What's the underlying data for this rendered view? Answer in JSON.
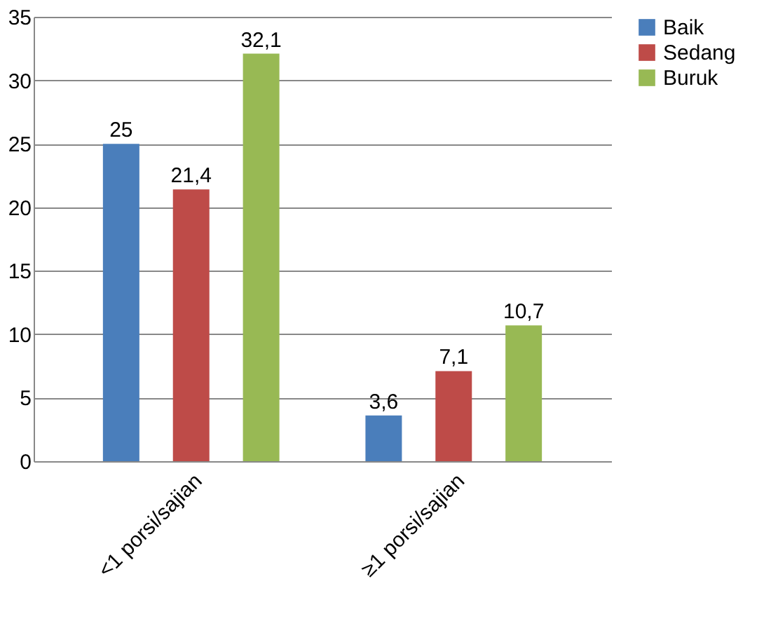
{
  "chart_data": {
    "type": "bar",
    "categories": [
      "<1 porsi/sajian",
      "≥1 porsi/sajian"
    ],
    "series": [
      {
        "name": "Baik",
        "color": "#4a7ebb",
        "values": [
          25,
          3.6
        ],
        "value_labels": [
          "25",
          "3,6"
        ]
      },
      {
        "name": "Sedang",
        "color": "#be4b48",
        "values": [
          21.4,
          7.1
        ],
        "value_labels": [
          "21,4",
          "7,1"
        ]
      },
      {
        "name": "Buruk",
        "color": "#98b954",
        "values": [
          32.1,
          10.7
        ],
        "value_labels": [
          "32,1",
          "10,7"
        ]
      }
    ],
    "ylim": [
      0,
      35
    ],
    "yticks": [
      0,
      5,
      10,
      15,
      20,
      25,
      30,
      35
    ],
    "grid": "y",
    "legend": "right"
  }
}
